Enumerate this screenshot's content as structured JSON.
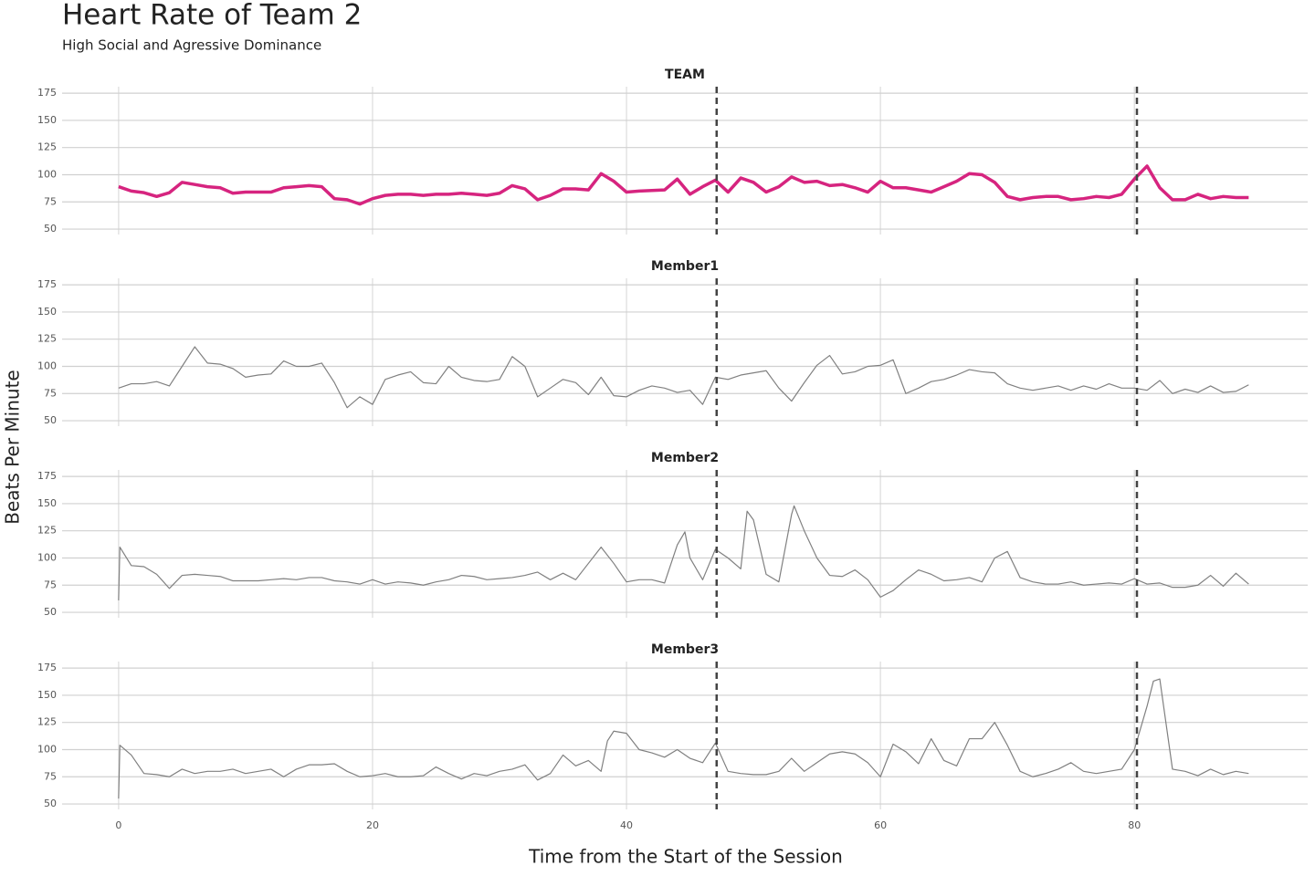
{
  "title": "Heart Rate of Team 2",
  "subtitle": "High Social and Agressive Dominance",
  "xlabel": "Time from the Start of the Session",
  "ylabel": "Beats Per Minute",
  "chart_data": [
    {
      "type": "line",
      "title": "TEAM",
      "x": [
        0,
        1,
        2,
        3,
        4,
        5,
        6,
        7,
        8,
        9,
        10,
        11,
        12,
        13,
        14,
        15,
        16,
        17,
        18,
        19,
        20,
        21,
        22,
        23,
        24,
        25,
        26,
        27,
        28,
        29,
        30,
        31,
        32,
        33,
        34,
        35,
        36,
        37,
        38,
        39,
        40,
        41,
        42,
        43,
        44,
        45,
        46,
        47,
        48,
        49,
        50,
        51,
        52,
        53,
        54,
        55,
        56,
        57,
        58,
        59,
        60,
        61,
        62,
        63,
        64,
        65,
        66,
        67,
        68,
        69,
        70,
        71,
        72,
        73,
        74,
        75,
        76,
        77,
        78,
        79,
        80,
        81,
        82,
        83,
        84,
        85,
        86,
        87,
        88,
        89
      ],
      "series": [
        {
          "color": "#d6247f",
          "values": [
            89,
            85,
            83.5,
            80,
            83.5,
            93,
            91,
            89,
            88,
            83,
            84,
            84,
            84,
            88,
            89,
            90,
            89,
            78,
            77,
            73,
            78,
            81,
            82,
            82,
            81,
            82,
            82,
            83,
            82,
            81,
            83,
            90,
            87,
            77,
            81,
            87,
            87,
            86,
            101,
            94,
            84,
            85,
            85.5,
            86,
            96,
            82,
            89,
            95,
            84,
            97,
            93,
            84,
            89,
            98,
            93,
            94,
            90,
            91,
            88,
            84,
            94,
            88,
            88,
            86,
            84,
            89,
            94,
            101,
            100,
            93,
            80,
            77,
            79,
            80,
            80,
            77,
            78,
            80,
            79,
            82,
            96,
            108,
            88,
            77,
            77,
            82,
            78,
            80,
            79,
            79
          ]
        }
      ],
      "xlim": [
        -4.45,
        93.65
      ],
      "ylim": [
        45,
        181
      ],
      "xticks": [
        0,
        20,
        40,
        60,
        80
      ],
      "yticks": [
        50,
        75,
        100,
        125,
        150,
        175
      ],
      "vlines": [
        47.1,
        80.2
      ]
    },
    {
      "type": "line",
      "title": "Member1",
      "x": [
        0,
        1,
        2,
        3,
        4,
        5,
        6,
        7,
        8,
        9,
        10,
        11,
        12,
        13,
        14,
        15,
        16,
        17,
        18,
        19,
        20,
        21,
        22,
        23,
        24,
        25,
        26,
        27,
        28,
        29,
        30,
        31,
        32,
        33,
        34,
        35,
        36,
        37,
        38,
        39,
        40,
        41,
        42,
        43,
        44,
        45,
        46,
        47,
        48,
        49,
        50,
        51,
        52,
        53,
        54,
        55,
        56,
        57,
        58,
        59,
        60,
        61,
        62,
        63,
        64,
        65,
        66,
        67,
        68,
        69,
        70,
        71,
        72,
        73,
        74,
        75,
        76,
        77,
        78,
        79,
        80,
        81,
        82,
        83,
        84,
        85,
        86,
        87,
        88,
        89
      ],
      "series": [
        {
          "color": "#808080",
          "values": [
            80,
            84,
            84,
            86,
            82,
            100,
            118,
            103,
            102,
            98,
            90,
            92,
            93,
            105,
            100,
            100,
            103,
            85,
            62,
            72,
            65,
            88,
            92,
            95,
            85,
            84,
            100,
            90,
            87,
            86,
            88,
            109,
            100,
            72,
            80,
            88,
            85,
            74,
            90,
            73,
            72,
            78,
            82,
            80,
            76,
            78,
            65,
            90,
            88,
            92,
            94,
            96,
            80,
            68,
            85,
            101,
            110,
            93,
            95,
            100,
            101,
            106,
            75,
            80,
            86,
            88,
            92,
            97,
            95,
            94,
            84,
            80,
            78,
            80,
            82,
            78,
            82,
            79,
            84,
            80,
            80,
            78,
            87,
            75,
            79,
            76,
            82,
            76,
            77,
            83
          ]
        }
      ],
      "xlim": [
        -4.45,
        93.65
      ],
      "ylim": [
        45,
        181
      ],
      "xticks": [
        0,
        20,
        40,
        60,
        80
      ],
      "yticks": [
        50,
        75,
        100,
        125,
        150,
        175
      ],
      "vlines": [
        47.1,
        80.2
      ]
    },
    {
      "type": "line",
      "title": "Member2",
      "x": [
        0,
        0.1,
        1,
        2,
        3,
        4,
        5,
        6,
        7,
        8,
        9,
        10,
        11,
        12,
        13,
        14,
        15,
        16,
        17,
        18,
        19,
        20,
        21,
        22,
        23,
        24,
        25,
        26,
        27,
        28,
        29,
        30,
        31,
        32,
        33,
        34,
        35,
        36,
        37,
        38,
        39,
        40,
        41,
        42,
        43,
        44,
        44.6,
        45,
        46,
        47,
        48,
        49,
        49.5,
        50,
        51,
        52,
        53,
        53.2,
        54,
        55,
        56,
        57,
        58,
        59,
        60,
        61,
        62,
        63,
        64,
        65,
        66,
        67,
        68,
        69,
        70,
        71,
        72,
        73,
        74,
        75,
        76,
        77,
        78,
        79,
        80,
        81,
        82,
        83,
        84,
        85,
        86,
        87,
        88,
        89
      ],
      "series": [
        {
          "color": "#808080",
          "values": [
            61,
            110,
            93,
            92,
            85,
            72,
            84,
            85,
            84,
            83,
            79,
            79,
            79,
            80,
            81,
            80,
            82,
            82,
            79,
            78,
            76,
            80,
            76,
            78,
            77,
            75,
            78,
            80,
            84,
            83,
            80,
            81,
            82,
            84,
            87,
            80,
            86,
            80,
            95,
            110,
            95,
            78,
            80,
            80,
            77,
            112,
            124,
            100,
            80,
            108,
            100,
            90,
            143,
            135,
            85,
            78,
            140,
            148,
            125,
            100,
            84,
            83,
            89,
            80,
            64,
            70,
            80,
            89,
            85,
            79,
            80,
            82,
            78,
            100,
            106,
            82,
            78,
            76,
            76,
            78,
            75,
            76,
            77,
            76,
            81,
            76,
            77,
            73,
            73,
            75,
            84,
            74,
            86,
            76
          ]
        }
      ],
      "xlim": [
        -4.45,
        93.65
      ],
      "ylim": [
        45,
        181
      ],
      "xticks": [
        0,
        20,
        40,
        60,
        80
      ],
      "yticks": [
        50,
        75,
        100,
        125,
        150,
        175
      ],
      "vlines": [
        47.1,
        80.2
      ]
    },
    {
      "type": "line",
      "title": "Member3",
      "x": [
        0,
        0.1,
        1,
        2,
        3,
        4,
        5,
        6,
        7,
        8,
        9,
        10,
        11,
        12,
        13,
        14,
        15,
        16,
        17,
        18,
        19,
        20,
        21,
        22,
        23,
        24,
        25,
        26,
        27,
        28,
        29,
        30,
        31,
        32,
        33,
        34,
        35,
        36,
        37,
        38,
        38.5,
        39,
        40,
        41,
        42,
        43,
        44,
        45,
        46,
        47,
        48,
        49,
        50,
        51,
        52,
        53,
        54,
        55,
        56,
        57,
        58,
        59,
        60,
        61,
        62,
        63,
        64,
        65,
        66,
        67,
        68,
        69,
        70,
        71,
        72,
        73,
        74,
        75,
        76,
        77,
        78,
        79,
        80,
        81,
        81.5,
        82,
        83,
        84,
        85,
        86,
        87,
        88,
        89
      ],
      "series": [
        {
          "color": "#808080",
          "values": [
            55,
            104,
            95,
            78,
            77,
            75,
            82,
            78,
            80,
            80,
            82,
            78,
            80,
            82,
            75,
            82,
            86,
            86,
            87,
            80,
            75,
            76,
            78,
            75,
            75,
            76,
            84,
            78,
            73,
            78,
            76,
            80,
            82,
            86,
            72,
            78,
            95,
            85,
            90,
            80,
            108,
            117,
            115,
            100,
            97,
            93,
            100,
            92,
            88,
            106,
            80,
            78,
            77,
            77,
            80,
            92,
            80,
            88,
            96,
            98,
            96,
            88,
            75,
            105,
            98,
            87,
            110,
            90,
            85,
            110,
            110,
            125,
            104,
            80,
            75,
            78,
            82,
            88,
            80,
            78,
            80,
            82,
            100,
            140,
            163,
            165,
            82,
            80,
            76,
            82,
            77,
            80,
            78
          ]
        }
      ],
      "xlim": [
        -4.45,
        93.65
      ],
      "ylim": [
        45,
        181
      ],
      "xticks": [
        0,
        20,
        40,
        60,
        80
      ],
      "yticks": [
        50,
        75,
        100,
        125,
        150,
        175
      ],
      "vlines": [
        47.1,
        80.2
      ]
    }
  ]
}
